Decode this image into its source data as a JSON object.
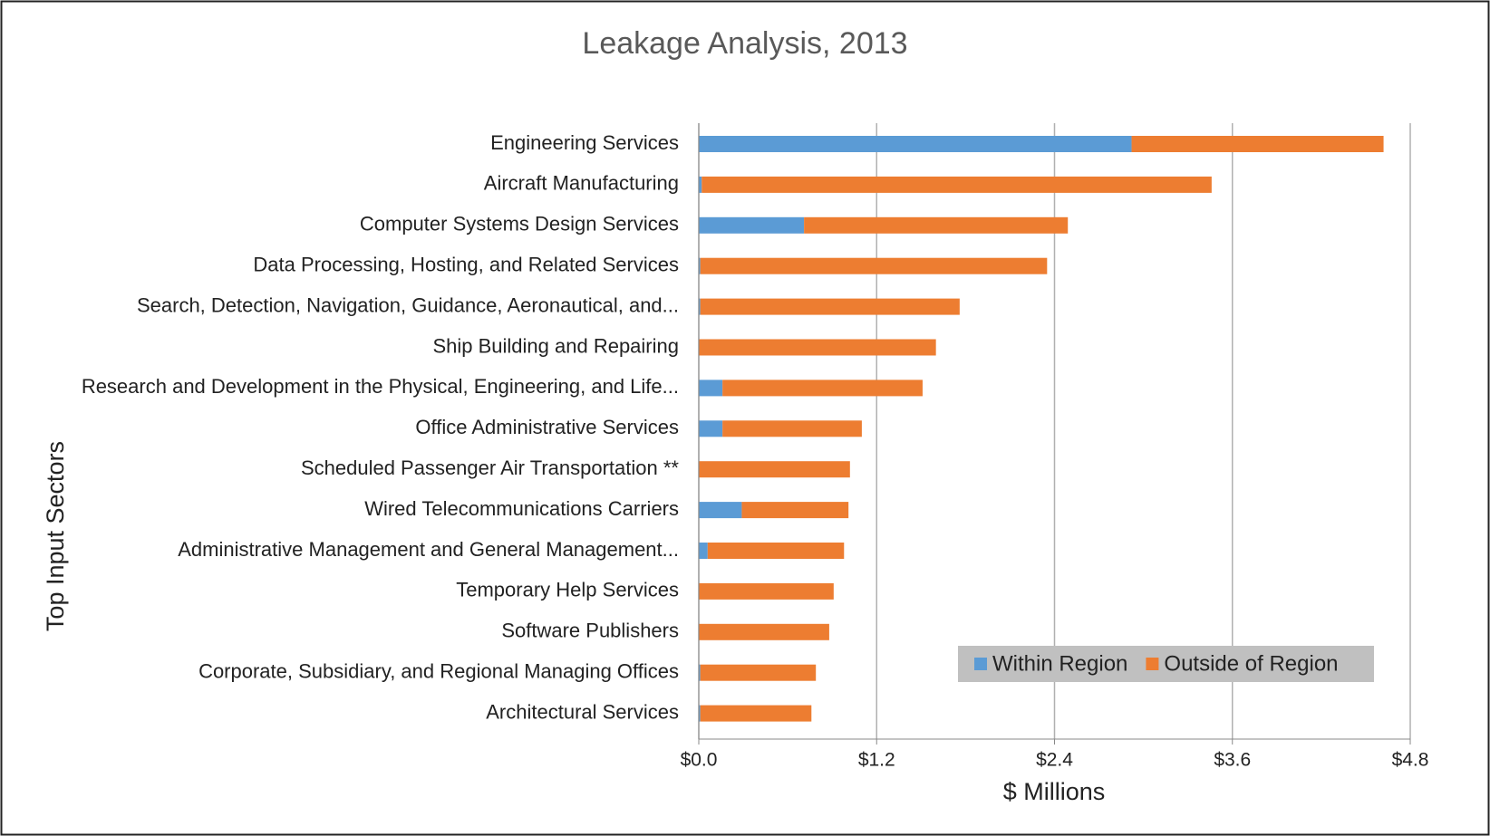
{
  "chart_data": {
    "type": "stacked_barh",
    "title": "Leakage Analysis, 2013",
    "xlabel": "$ Millions",
    "ylabel": "Top Input Sectors",
    "categories": [
      "Engineering Services",
      "Aircraft Manufacturing",
      "Computer Systems Design Services",
      "Data Processing, Hosting, and Related Services",
      "Search, Detection, Navigation, Guidance, Aeronautical, and...",
      "Ship Building and Repairing",
      "Research and Development in the Physical, Engineering, and Life...",
      "Office Administrative Services",
      "Scheduled Passenger Air Transportation **",
      "Wired Telecommunications Carriers",
      "Administrative Management and General Management...",
      "Temporary Help Services",
      "Software Publishers",
      "Corporate, Subsidiary, and Regional Managing Offices",
      "Architectural Services"
    ],
    "series": [
      {
        "name": "Within Region",
        "color": "#5b9bd5",
        "values": [
          2.92,
          0.02,
          0.71,
          0.01,
          0.01,
          0,
          0.16,
          0.16,
          0,
          0.29,
          0.06,
          0,
          0,
          0.01,
          0.01
        ]
      },
      {
        "name": "Outside of Region",
        "color": "#ed7d31",
        "values": [
          1.7,
          3.44,
          1.78,
          2.34,
          1.75,
          1.6,
          1.35,
          0.94,
          1.02,
          0.72,
          0.92,
          0.91,
          0.88,
          0.78,
          0.75
        ]
      }
    ],
    "xlim": [
      0,
      4.8
    ],
    "xticks": [
      {
        "value": 0,
        "label": "$0.0"
      },
      {
        "value": 1.2,
        "label": "$1.2"
      },
      {
        "value": 2.4,
        "label": "$2.4"
      },
      {
        "value": 3.6,
        "label": "$3.6"
      },
      {
        "value": 4.8,
        "label": "$4.8"
      }
    ],
    "grid": true,
    "legend": "lower right"
  }
}
